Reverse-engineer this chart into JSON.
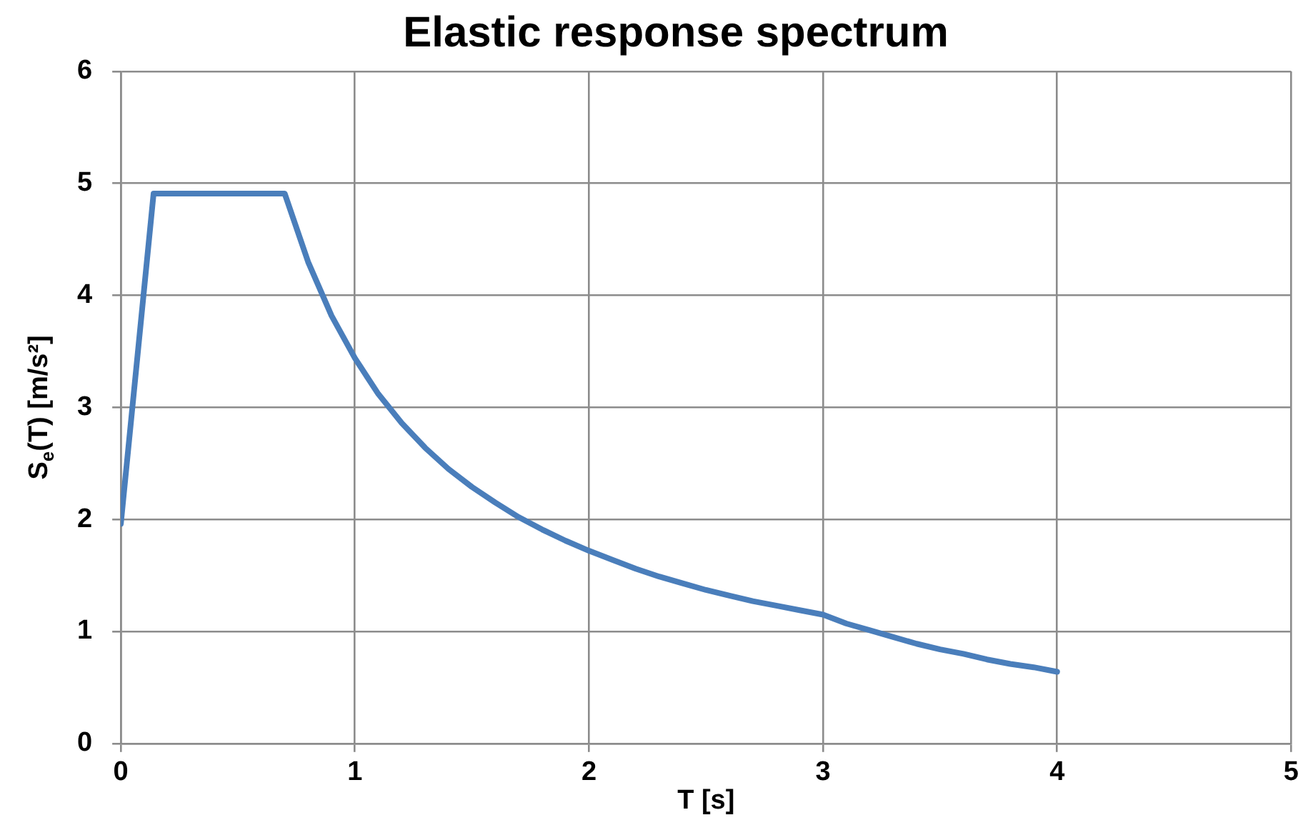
{
  "chart_data": {
    "type": "line",
    "title": "Elastic response spectrum",
    "xlabel": "T [s]",
    "ylabel": "S$_{e}$(T) [m/s²]",
    "x": [
      0,
      0.14,
      0.7,
      0.8,
      0.9,
      1.0,
      1.1,
      1.2,
      1.3,
      1.4,
      1.5,
      1.6,
      1.7,
      1.8,
      1.9,
      2.0,
      2.1,
      2.2,
      2.3,
      2.4,
      2.5,
      2.6,
      2.7,
      2.8,
      2.9,
      3.0,
      3.1,
      3.2,
      3.3,
      3.4,
      3.5,
      3.6,
      3.7,
      3.8,
      3.9,
      4.0
    ],
    "series": [
      {
        "color": "#4a7ebb",
        "values": [
          1.96,
          4.91,
          4.91,
          4.3,
          3.82,
          3.44,
          3.12,
          2.86,
          2.64,
          2.45,
          2.29,
          2.15,
          2.02,
          1.91,
          1.81,
          1.72,
          1.64,
          1.56,
          1.49,
          1.43,
          1.37,
          1.32,
          1.27,
          1.23,
          1.19,
          1.15,
          1.07,
          1.01,
          0.95,
          0.89,
          0.84,
          0.8,
          0.75,
          0.71,
          0.68,
          0.64
        ]
      }
    ],
    "xlim": [
      0,
      5
    ],
    "xticks": [
      0,
      1,
      2,
      3,
      4,
      5
    ],
    "ylim": [
      0,
      6
    ],
    "yticks": [
      0,
      1,
      2,
      3,
      4,
      5,
      6
    ],
    "grid": true,
    "legend": false,
    "marker": "none",
    "line_style": "solid"
  }
}
